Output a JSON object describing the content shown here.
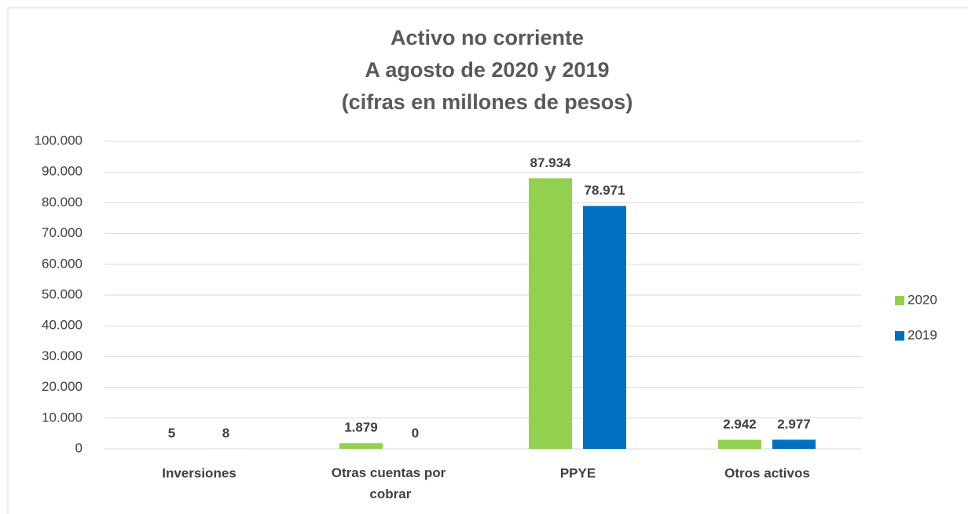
{
  "chart_data": {
    "type": "bar",
    "title": [
      "Activo no corriente",
      "A agosto de 2020 y 2019",
      "(cifras en millones de pesos)"
    ],
    "categories": [
      "Inversiones",
      "Otras cuentas por cobrar",
      "PPYE",
      "Otros activos"
    ],
    "series": [
      {
        "name": "2020",
        "color": "#92d050",
        "values": [
          5,
          1879,
          87934,
          2942
        ],
        "value_labels": [
          "5",
          "1.879",
          "87.934",
          "2.942"
        ]
      },
      {
        "name": "2019",
        "color": "#0070c0",
        "values": [
          8,
          0,
          78971,
          2977
        ],
        "value_labels": [
          "8",
          "0",
          "78.971",
          "2.977"
        ]
      }
    ],
    "ylim": [
      0,
      100000
    ],
    "yticks": [
      0,
      {
        "value": 10000,
        "label": "10.000"
      },
      {
        "value": 20000,
        "label": "20.000"
      },
      {
        "value": 30000,
        "label": "30.000"
      },
      {
        "value": 40000,
        "label": "40.000"
      },
      {
        "value": 50000,
        "label": "50.000"
      },
      {
        "value": 60000,
        "label": "60.000"
      },
      {
        "value": 70000,
        "label": "70.000"
      },
      {
        "value": 80000,
        "label": "80.000"
      },
      {
        "value": 90000,
        "label": "90.000"
      },
      {
        "value": 100000,
        "label": "100.000"
      }
    ],
    "grid": true,
    "legend": "right"
  }
}
